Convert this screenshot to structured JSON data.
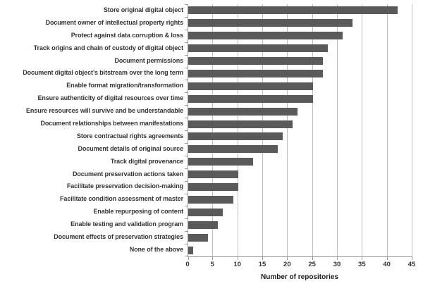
{
  "chart_data": {
    "type": "bar",
    "orientation": "horizontal",
    "title": "",
    "xlabel": "Number of repositories",
    "ylabel": "",
    "xlim": [
      0,
      45
    ],
    "x_ticks": [
      0,
      5,
      10,
      15,
      20,
      25,
      30,
      35,
      40,
      45
    ],
    "grid": true,
    "legend": "none",
    "bar_color": "#5a5a5a",
    "categories": [
      "Store original digital object",
      "Document owner of intellectual property rights",
      "Protect against data corruption & loss",
      "Track origins and chain of custody of digital object",
      "Document permissions",
      "Document digital object’s bitstream over the long term",
      "Enable format migration/transformation",
      "Ensure authenticity of digital resources over time",
      "Ensure resources will survive and be understandable",
      "Document relationships between manifestations",
      "Store contractual rights agreements",
      "Document details of original source",
      "Track digital provenance",
      "Document preservation actions taken",
      "Facilitate preservation decision-making",
      "Facilitate condition assessment of master",
      "Enable repurposing of content",
      "Enable testing and validation program",
      "Document effects of preservation strategies",
      "None of the above"
    ],
    "values": [
      42,
      33,
      31,
      28,
      27,
      27,
      25,
      25,
      22,
      21,
      19,
      18,
      13,
      10,
      10,
      9,
      7,
      6,
      4,
      1
    ]
  }
}
